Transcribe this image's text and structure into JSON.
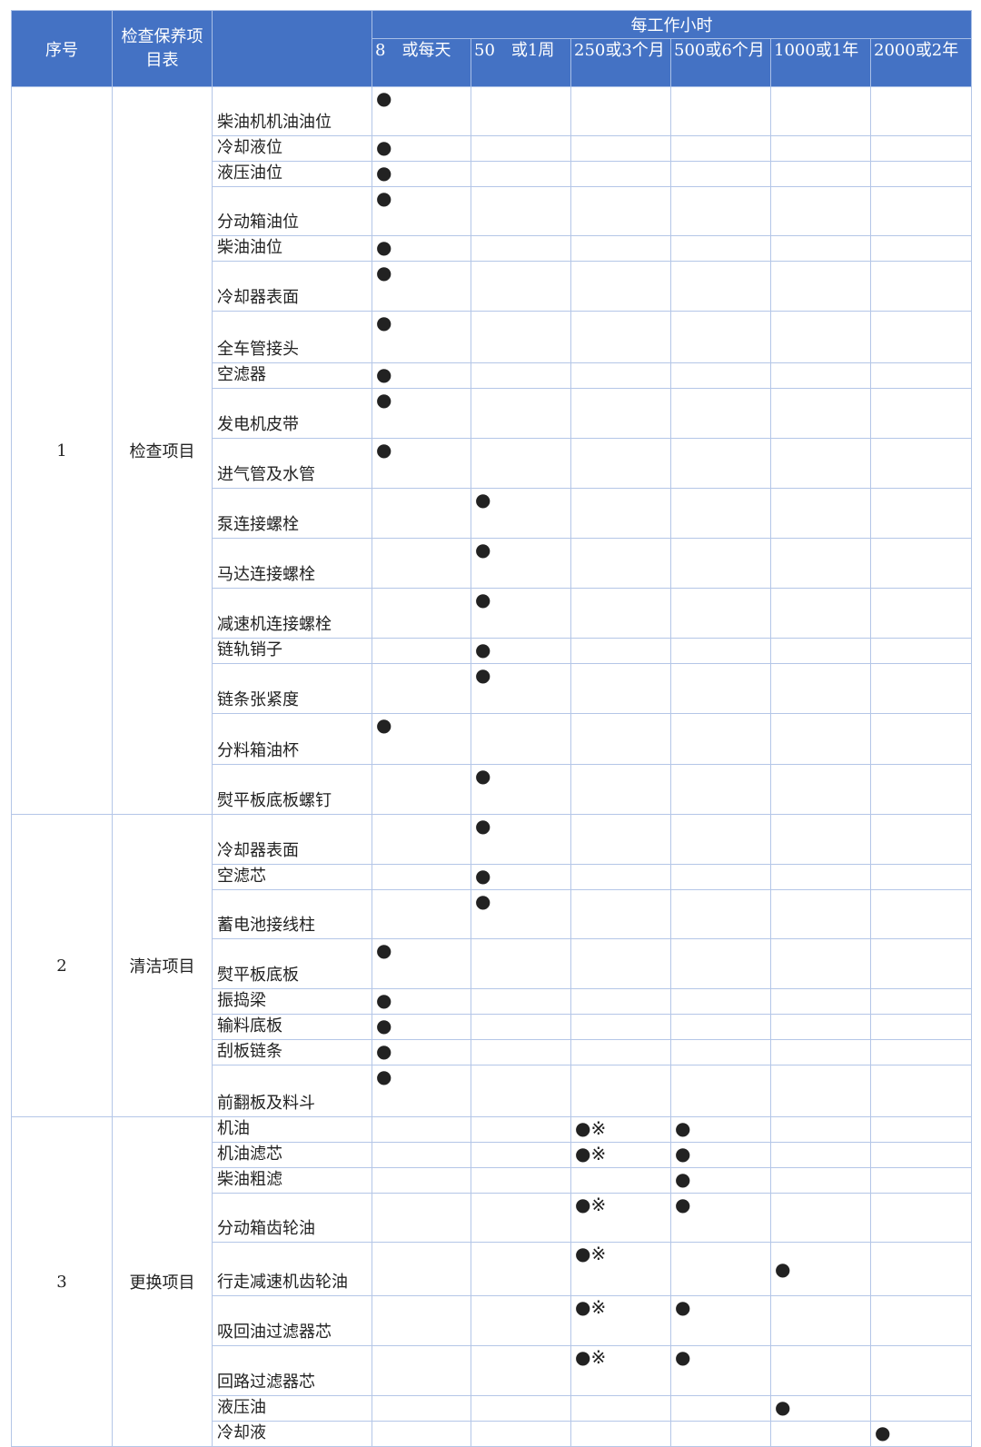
{
  "header": {
    "seq": "序号",
    "category": "检查保养项目表",
    "interval_title": "每工作小时",
    "intervals": [
      "8　或每天",
      "50　或1周",
      "250或3个月",
      "500或6个月",
      "1000或1年",
      "2000或2年"
    ]
  },
  "groups": [
    {
      "seq": "1",
      "name": "检查项目",
      "items": [
        {
          "name": "柴油机机油油位",
          "marks": [
            "●",
            "",
            "",
            "",
            "",
            ""
          ]
        },
        {
          "name": "冷却液位",
          "marks": [
            "●",
            "",
            "",
            "",
            "",
            ""
          ]
        },
        {
          "name": "液压油位",
          "marks": [
            "●",
            "",
            "",
            "",
            "",
            ""
          ]
        },
        {
          "name": "分动箱油位",
          "marks": [
            "●",
            "",
            "",
            "",
            "",
            ""
          ]
        },
        {
          "name": "柴油油位",
          "marks": [
            "●",
            "",
            "",
            "",
            "",
            ""
          ]
        },
        {
          "name": "冷却器表面",
          "marks": [
            "●",
            "",
            "",
            "",
            "",
            ""
          ]
        },
        {
          "name": "全车管接头",
          "marks": [
            "●",
            "",
            "",
            "",
            "",
            ""
          ]
        },
        {
          "name": "空滤器",
          "marks": [
            "●",
            "",
            "",
            "",
            "",
            ""
          ]
        },
        {
          "name": "发电机皮带",
          "marks": [
            "●",
            "",
            "",
            "",
            "",
            ""
          ]
        },
        {
          "name": "进气管及水管",
          "marks": [
            "●",
            "",
            "",
            "",
            "",
            ""
          ]
        },
        {
          "name": "泵连接螺栓",
          "marks": [
            "",
            "●",
            "",
            "",
            "",
            ""
          ]
        },
        {
          "name": "马达连接螺栓",
          "marks": [
            "",
            "●",
            "",
            "",
            "",
            ""
          ]
        },
        {
          "name": "减速机连接螺栓",
          "marks": [
            "",
            "●",
            "",
            "",
            "",
            ""
          ]
        },
        {
          "name": "链轨销子",
          "marks": [
            "",
            "●",
            "",
            "",
            "",
            ""
          ]
        },
        {
          "name": "链条张紧度",
          "marks": [
            "",
            "●",
            "",
            "",
            "",
            ""
          ]
        },
        {
          "name": "分料箱油杯",
          "marks": [
            "●",
            "",
            "",
            "",
            "",
            ""
          ]
        },
        {
          "name": "熨平板底板螺钉",
          "marks": [
            "",
            "●",
            "",
            "",
            "",
            ""
          ]
        }
      ]
    },
    {
      "seq": "2",
      "name": "清洁项目",
      "items": [
        {
          "name": "冷却器表面",
          "marks": [
            "",
            "●",
            "",
            "",
            "",
            ""
          ]
        },
        {
          "name": "空滤芯",
          "marks": [
            "",
            "●",
            "",
            "",
            "",
            ""
          ]
        },
        {
          "name": "蓄电池接线柱",
          "marks": [
            "",
            "●",
            "",
            "",
            "",
            ""
          ]
        },
        {
          "name": "熨平板底板",
          "marks": [
            "●",
            "",
            "",
            "",
            "",
            ""
          ]
        },
        {
          "name": "振捣梁",
          "marks": [
            "●",
            "",
            "",
            "",
            "",
            ""
          ]
        },
        {
          "name": "输料底板",
          "marks": [
            "●",
            "",
            "",
            "",
            "",
            ""
          ]
        },
        {
          "name": "刮板链条",
          "marks": [
            "●",
            "",
            "",
            "",
            "",
            ""
          ]
        },
        {
          "name": "前翻板及料斗",
          "marks": [
            "●",
            "",
            "",
            "",
            "",
            ""
          ]
        }
      ]
    },
    {
      "seq": "3",
      "name": "更换项目",
      "items": [
        {
          "name": "机油",
          "marks": [
            "",
            "",
            "●※",
            "●",
            "",
            ""
          ]
        },
        {
          "name": "机油滤芯",
          "marks": [
            "",
            "",
            "●※",
            "●",
            "",
            ""
          ]
        },
        {
          "name": "柴油粗滤",
          "marks": [
            "",
            "",
            "",
            "●",
            "",
            ""
          ]
        },
        {
          "name": "分动箱齿轮油",
          "marks": [
            "",
            "",
            "●※",
            "●",
            "",
            ""
          ]
        },
        {
          "name": "行走减速机齿轮油",
          "marks": [
            "",
            "",
            "●※",
            "",
            "●",
            ""
          ]
        },
        {
          "name": "吸回油过滤器芯",
          "marks": [
            "",
            "",
            "●※",
            "●",
            "",
            ""
          ]
        },
        {
          "name": "回路过滤器芯",
          "marks": [
            "",
            "",
            "●※",
            "●",
            "",
            ""
          ]
        },
        {
          "name": "液压油",
          "marks": [
            "",
            "",
            "",
            "",
            "●",
            ""
          ]
        },
        {
          "name": "冷却液",
          "marks": [
            "",
            "",
            "",
            "",
            "",
            "●"
          ]
        }
      ]
    }
  ]
}
